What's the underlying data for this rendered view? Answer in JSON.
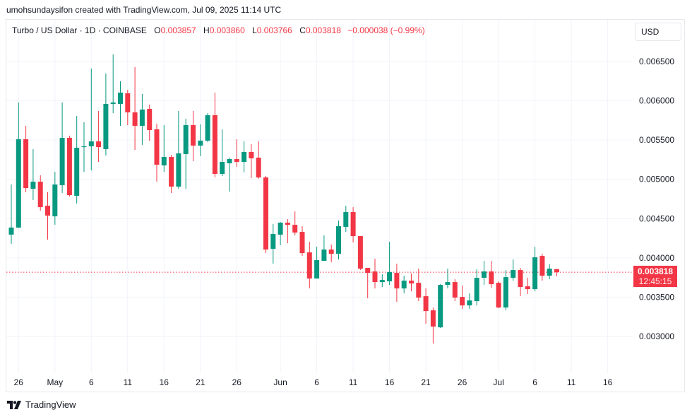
{
  "credit": "umohsundaysifon created with TradingView.com, Jul 09, 2025 11:14 UTC",
  "legend": {
    "symbol": "Turbo / US Dollar · 1D · COINBASE",
    "o_label": "O",
    "o": "0.003857",
    "h_label": "H",
    "h": "0.003860",
    "l_label": "L",
    "l": "0.003766",
    "c_label": "C",
    "c": "0.003818",
    "change": "−0.000038 (−0.99%)"
  },
  "currency_button": "USD",
  "last_price": {
    "value": "0.003818",
    "countdown": "12:45:15"
  },
  "footer": {
    "brand": "TradingView"
  },
  "colors": {
    "up": "#089981",
    "down": "#f23645",
    "grid": "#f0f3fa"
  },
  "chart_data": {
    "type": "candlestick",
    "title": "Turbo / US Dollar · 1D · COINBASE",
    "grid": true,
    "y_axis": {
      "position": "right",
      "range": [
        0.0026,
        0.0068
      ],
      "ticks": [
        "0.006500",
        "0.006000",
        "0.005500",
        "0.005000",
        "0.004500",
        "0.004000",
        "0.003500",
        "0.003000"
      ]
    },
    "x_axis": {
      "ticks": [
        {
          "date": "2025-04-26",
          "label": "26"
        },
        {
          "date": "2025-05-01",
          "label": "May"
        },
        {
          "date": "2025-05-06",
          "label": "6"
        },
        {
          "date": "2025-05-11",
          "label": "11"
        },
        {
          "date": "2025-05-16",
          "label": "16"
        },
        {
          "date": "2025-05-21",
          "label": "21"
        },
        {
          "date": "2025-05-26",
          "label": "26"
        },
        {
          "date": "2025-06-01",
          "label": "Jun"
        },
        {
          "date": "2025-06-06",
          "label": "6"
        },
        {
          "date": "2025-06-11",
          "label": "11"
        },
        {
          "date": "2025-06-16",
          "label": "16"
        },
        {
          "date": "2025-06-21",
          "label": "21"
        },
        {
          "date": "2025-06-26",
          "label": "26"
        },
        {
          "date": "2025-07-01",
          "label": "Jul"
        },
        {
          "date": "2025-07-06",
          "label": "6"
        },
        {
          "date": "2025-07-11",
          "label": "11"
        },
        {
          "date": "2025-07-16",
          "label": "16"
        }
      ]
    },
    "last_price_line": 0.003818,
    "columns": [
      "date",
      "open",
      "high",
      "low",
      "close"
    ],
    "candles": [
      [
        "2025-04-25",
        0.004296,
        0.004934,
        0.004179,
        0.004386
      ],
      [
        "2025-04-26",
        0.004385,
        0.005978,
        0.00438,
        0.00551
      ],
      [
        "2025-04-27",
        0.00551,
        0.005681,
        0.004835,
        0.004889
      ],
      [
        "2025-04-28",
        0.00488,
        0.005384,
        0.004736,
        0.00497
      ],
      [
        "2025-04-29",
        0.00497,
        0.005051,
        0.004601,
        0.004646
      ],
      [
        "2025-04-30",
        0.004664,
        0.004835,
        0.004232,
        0.004538
      ],
      [
        "2025-05-01",
        0.004529,
        0.005096,
        0.004421,
        0.004934
      ],
      [
        "2025-05-02",
        0.004925,
        0.005978,
        0.004826,
        0.005528
      ],
      [
        "2025-05-03",
        0.005528,
        0.005555,
        0.004781,
        0.004799
      ],
      [
        "2025-05-04",
        0.00479,
        0.005807,
        0.004691,
        0.005402
      ],
      [
        "2025-05-05",
        0.00541,
        0.005726,
        0.005096,
        0.00542
      ],
      [
        "2025-05-06",
        0.00542,
        0.00641,
        0.005114,
        0.005483
      ],
      [
        "2025-05-07",
        0.005483,
        0.00587,
        0.005222,
        0.00541
      ],
      [
        "2025-05-08",
        0.005384,
        0.006347,
        0.005303,
        0.00596
      ],
      [
        "2025-05-09",
        0.00596,
        0.00659,
        0.005843,
        0.005978
      ],
      [
        "2025-05-10",
        0.00596,
        0.006248,
        0.005681,
        0.006104
      ],
      [
        "2025-05-11",
        0.006095,
        0.00614,
        0.00569,
        0.005852
      ],
      [
        "2025-05-12",
        0.005852,
        0.006428,
        0.005375,
        0.005681
      ],
      [
        "2025-05-13",
        0.005681,
        0.006086,
        0.005438,
        0.005888
      ],
      [
        "2025-05-14",
        0.005897,
        0.005951,
        0.005492,
        0.005627
      ],
      [
        "2025-05-15",
        0.005636,
        0.005708,
        0.00497,
        0.005186
      ],
      [
        "2025-05-16",
        0.005177,
        0.00569,
        0.005096,
        0.005285
      ],
      [
        "2025-05-17",
        0.005285,
        0.005312,
        0.004826,
        0.004907
      ],
      [
        "2025-05-18",
        0.004907,
        0.00587,
        0.00488,
        0.00533
      ],
      [
        "2025-05-19",
        0.005321,
        0.005771,
        0.00488,
        0.00569
      ],
      [
        "2025-05-20",
        0.00569,
        0.00587,
        0.005231,
        0.005429
      ],
      [
        "2025-05-21",
        0.005429,
        0.005699,
        0.005294,
        0.005492
      ],
      [
        "2025-05-22",
        0.005492,
        0.005843,
        0.005474,
        0.005816
      ],
      [
        "2025-05-23",
        0.005816,
        0.006104,
        0.005024,
        0.005069
      ],
      [
        "2025-05-24",
        0.005069,
        0.005636,
        0.005042,
        0.005222
      ],
      [
        "2025-05-25",
        0.005204,
        0.005276,
        0.004844,
        0.005258
      ],
      [
        "2025-05-26",
        0.005258,
        0.00551,
        0.005159,
        0.005222
      ],
      [
        "2025-05-27",
        0.005222,
        0.005483,
        0.005087,
        0.005348
      ],
      [
        "2025-05-28",
        0.005348,
        0.005447,
        0.005015,
        0.005267
      ],
      [
        "2025-05-29",
        0.005276,
        0.005483,
        0.005006,
        0.005024
      ],
      [
        "2025-05-30",
        0.005024,
        0.005042,
        0.004061,
        0.004106
      ],
      [
        "2025-05-31",
        0.004115,
        0.00443,
        0.003926,
        0.004304
      ],
      [
        "2025-06-01",
        0.004295,
        0.004457,
        0.00416,
        0.004448
      ],
      [
        "2025-06-02",
        0.004448,
        0.004493,
        0.004187,
        0.004421
      ],
      [
        "2025-06-03",
        0.004421,
        0.004592,
        0.004286,
        0.004322
      ],
      [
        "2025-06-04",
        0.004331,
        0.004403,
        0.004025,
        0.004061
      ],
      [
        "2025-06-05",
        0.00407,
        0.004205,
        0.003611,
        0.003737
      ],
      [
        "2025-06-06",
        0.003737,
        0.004142,
        0.003737,
        0.003971
      ],
      [
        "2025-06-07",
        0.003962,
        0.004286,
        0.003962,
        0.004106
      ],
      [
        "2025-06-08",
        0.004106,
        0.004169,
        0.003944,
        0.004052
      ],
      [
        "2025-06-09",
        0.004052,
        0.004475,
        0.00398,
        0.004403
      ],
      [
        "2025-06-10",
        0.004394,
        0.004664,
        0.004331,
        0.004583
      ],
      [
        "2025-06-11",
        0.004583,
        0.004646,
        0.004196,
        0.004277
      ],
      [
        "2025-06-12",
        0.004277,
        0.004277,
        0.003845,
        0.003863
      ],
      [
        "2025-06-13",
        0.003872,
        0.003872,
        0.003485,
        0.003809
      ],
      [
        "2025-06-14",
        0.003827,
        0.003989,
        0.003611,
        0.003692
      ],
      [
        "2025-06-15",
        0.003692,
        0.003791,
        0.003629,
        0.003719
      ],
      [
        "2025-06-16",
        0.003701,
        0.004205,
        0.003656,
        0.003818
      ],
      [
        "2025-06-17",
        0.003809,
        0.003926,
        0.00344,
        0.003611
      ],
      [
        "2025-06-18",
        0.003611,
        0.003773,
        0.003548,
        0.00371
      ],
      [
        "2025-06-19",
        0.00371,
        0.0038,
        0.003575,
        0.003674
      ],
      [
        "2025-06-20",
        0.003683,
        0.003863,
        0.003449,
        0.003494
      ],
      [
        "2025-06-21",
        0.003512,
        0.003611,
        0.003161,
        0.003323
      ],
      [
        "2025-06-22",
        0.003332,
        0.003368,
        0.002909,
        0.003125
      ],
      [
        "2025-06-23",
        0.003116,
        0.003665,
        0.003107,
        0.003656
      ],
      [
        "2025-06-24",
        0.003656,
        0.003863,
        0.003611,
        0.003692
      ],
      [
        "2025-06-25",
        0.003692,
        0.003728,
        0.003449,
        0.003494
      ],
      [
        "2025-06-26",
        0.003503,
        0.003647,
        0.00335,
        0.003395
      ],
      [
        "2025-06-27",
        0.003395,
        0.003548,
        0.00335,
        0.003458
      ],
      [
        "2025-06-28",
        0.003449,
        0.003854,
        0.003395,
        0.003746
      ],
      [
        "2025-06-29",
        0.003746,
        0.003962,
        0.003656,
        0.003827
      ],
      [
        "2025-06-30",
        0.003827,
        0.003962,
        0.00362,
        0.003665
      ],
      [
        "2025-07-01",
        0.003683,
        0.003701,
        0.003359,
        0.003368
      ],
      [
        "2025-07-02",
        0.003368,
        0.003845,
        0.003332,
        0.003755
      ],
      [
        "2025-07-03",
        0.003746,
        0.00398,
        0.00371,
        0.003845
      ],
      [
        "2025-07-04",
        0.003845,
        0.003872,
        0.003512,
        0.003629
      ],
      [
        "2025-07-05",
        0.003638,
        0.003746,
        0.003539,
        0.003602
      ],
      [
        "2025-07-06",
        0.003602,
        0.004142,
        0.003575,
        0.004007
      ],
      [
        "2025-07-07",
        0.004025,
        0.004052,
        0.00371,
        0.003773
      ],
      [
        "2025-07-08",
        0.003773,
        0.003917,
        0.003728,
        0.003863
      ],
      [
        "2025-07-09",
        0.003857,
        0.00386,
        0.003766,
        0.003818
      ]
    ]
  }
}
